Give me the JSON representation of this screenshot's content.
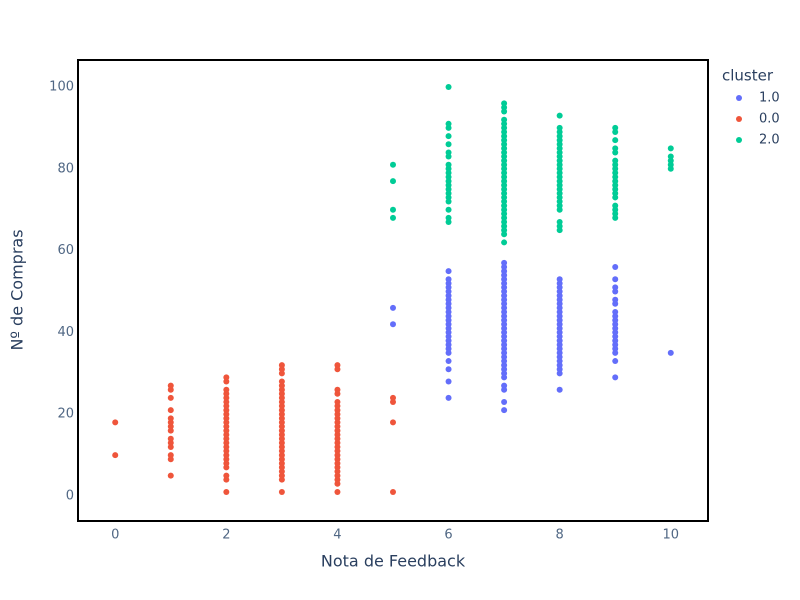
{
  "chart_data": {
    "type": "scatter",
    "xlabel": "Nota de Feedback",
    "ylabel": "Nº de Compras",
    "legend_title": "cluster",
    "legend": "right",
    "xlim": [
      -0.67,
      10.67
    ],
    "ylim": [
      -6.1,
      106.6
    ],
    "xticks": [
      0,
      2,
      4,
      6,
      8,
      10
    ],
    "yticks": [
      0,
      20,
      40,
      60,
      80,
      100
    ],
    "grid": false,
    "series": [
      {
        "name": "1.0",
        "color": "#636efa",
        "x": [
          5,
          5,
          6,
          6,
          6,
          6,
          6,
          6,
          6,
          6,
          6,
          6,
          6,
          6,
          6,
          6,
          6,
          6,
          6,
          6,
          6,
          6,
          6,
          6,
          6,
          6,
          7,
          7,
          7,
          7,
          7,
          7,
          7,
          7,
          7,
          7,
          7,
          7,
          7,
          7,
          7,
          7,
          7,
          7,
          7,
          7,
          7,
          7,
          7,
          7,
          7,
          7,
          7,
          7,
          7,
          7,
          7,
          7,
          7,
          8,
          8,
          8,
          8,
          8,
          8,
          8,
          8,
          8,
          8,
          8,
          8,
          8,
          8,
          8,
          8,
          8,
          8,
          8,
          8,
          8,
          8,
          8,
          8,
          8,
          9,
          9,
          9,
          9,
          9,
          9,
          9,
          9,
          9,
          9,
          9,
          9,
          9,
          9,
          9,
          9,
          9,
          9,
          9,
          10
        ],
        "values": [
          42,
          46,
          24,
          28,
          31,
          33,
          35,
          36,
          37,
          38,
          39,
          40,
          41,
          42,
          43,
          44,
          45,
          46,
          47,
          48,
          49,
          50,
          51,
          52,
          53,
          55,
          21,
          23,
          26,
          27,
          29,
          30,
          31,
          32,
          33,
          34,
          35,
          36,
          37,
          38,
          39,
          40,
          41,
          42,
          43,
          44,
          45,
          46,
          47,
          48,
          49,
          50,
          51,
          52,
          53,
          54,
          55,
          56,
          57,
          26,
          30,
          31,
          32,
          33,
          34,
          35,
          36,
          37,
          38,
          39,
          40,
          41,
          42,
          43,
          44,
          45,
          46,
          47,
          48,
          49,
          50,
          51,
          52,
          53,
          29,
          33,
          35,
          36,
          37,
          38,
          39,
          40,
          41,
          42,
          43,
          44,
          45,
          47,
          48,
          50,
          51,
          53,
          56,
          35
        ]
      },
      {
        "name": "0.0",
        "color": "#EF553B",
        "x": [
          0,
          0,
          1,
          1,
          1,
          1,
          1,
          1,
          1,
          1,
          1,
          1,
          1,
          1,
          1,
          1,
          2,
          2,
          2,
          2,
          2,
          2,
          2,
          2,
          2,
          2,
          2,
          2,
          2,
          2,
          2,
          2,
          2,
          2,
          2,
          2,
          2,
          2,
          2,
          2,
          2,
          3,
          3,
          3,
          3,
          3,
          3,
          3,
          3,
          3,
          3,
          3,
          3,
          3,
          3,
          3,
          3,
          3,
          3,
          3,
          3,
          3,
          3,
          3,
          3,
          3,
          3,
          3,
          3,
          3,
          4,
          4,
          4,
          4,
          4,
          4,
          4,
          4,
          4,
          4,
          4,
          4,
          4,
          4,
          4,
          4,
          4,
          4,
          4,
          4,
          4,
          4,
          4,
          4,
          4,
          4,
          5,
          5,
          5,
          5
        ],
        "values": [
          10,
          18,
          5,
          9,
          10,
          12,
          13,
          14,
          16,
          17,
          18,
          19,
          21,
          24,
          26,
          27,
          1,
          4,
          5,
          7,
          8,
          9,
          10,
          11,
          12,
          13,
          14,
          15,
          16,
          17,
          18,
          19,
          20,
          21,
          22,
          23,
          24,
          25,
          26,
          28,
          29,
          1,
          4,
          5,
          6,
          7,
          8,
          9,
          10,
          11,
          12,
          13,
          14,
          15,
          16,
          17,
          18,
          19,
          20,
          21,
          22,
          23,
          24,
          25,
          26,
          27,
          28,
          30,
          31,
          32,
          1,
          3,
          4,
          5,
          6,
          7,
          8,
          9,
          10,
          11,
          12,
          13,
          14,
          15,
          16,
          17,
          18,
          19,
          20,
          21,
          22,
          23,
          25,
          26,
          31,
          32,
          1,
          18,
          23,
          24
        ]
      },
      {
        "name": "2.0",
        "color": "#00cc96",
        "x": [
          5,
          5,
          5,
          5,
          6,
          6,
          6,
          6,
          6,
          6,
          6,
          6,
          6,
          6,
          6,
          6,
          6,
          6,
          6,
          6,
          6,
          6,
          6,
          6,
          7,
          7,
          7,
          7,
          7,
          7,
          7,
          7,
          7,
          7,
          7,
          7,
          7,
          7,
          7,
          7,
          7,
          7,
          7,
          7,
          7,
          7,
          7,
          7,
          7,
          7,
          7,
          7,
          7,
          7,
          7,
          7,
          7,
          8,
          8,
          8,
          8,
          8,
          8,
          8,
          8,
          8,
          8,
          8,
          8,
          8,
          8,
          8,
          8,
          8,
          8,
          8,
          8,
          8,
          8,
          8,
          8,
          8,
          9,
          9,
          9,
          9,
          9,
          9,
          9,
          9,
          9,
          9,
          9,
          9,
          9,
          9,
          9,
          9,
          9,
          9,
          9,
          10,
          10,
          10,
          10,
          10
        ],
        "values": [
          68,
          70,
          77,
          81,
          67,
          68,
          70,
          72,
          73,
          74,
          75,
          76,
          77,
          78,
          79,
          80,
          81,
          83,
          84,
          86,
          88,
          90,
          91,
          100,
          62,
          64,
          65,
          66,
          67,
          68,
          69,
          70,
          71,
          72,
          73,
          74,
          75,
          76,
          77,
          78,
          79,
          80,
          81,
          82,
          83,
          84,
          85,
          86,
          87,
          88,
          89,
          90,
          91,
          92,
          94,
          95,
          96,
          65,
          66,
          67,
          70,
          71,
          72,
          73,
          74,
          75,
          76,
          77,
          78,
          79,
          80,
          81,
          82,
          83,
          84,
          85,
          86,
          87,
          88,
          89,
          90,
          93,
          68,
          69,
          70,
          71,
          73,
          74,
          75,
          76,
          77,
          78,
          79,
          80,
          81,
          82,
          84,
          85,
          87,
          89,
          90,
          80,
          81,
          82,
          83,
          85
        ]
      }
    ]
  }
}
